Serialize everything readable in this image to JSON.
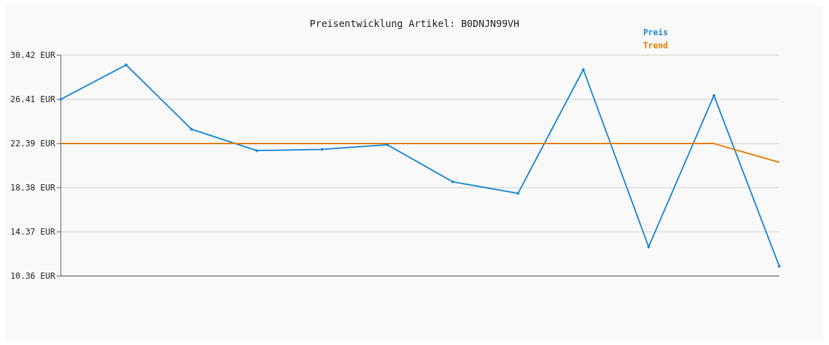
{
  "chart_data": {
    "type": "line",
    "title": "Preisentwicklung Artikel: B0DNJN99VH",
    "categories": [
      null,
      null,
      null,
      null,
      null,
      null,
      null,
      null,
      null,
      null,
      null,
      null
    ],
    "series": [
      {
        "name": "Preis",
        "color": "#1f88d2",
        "values": [
          26.41,
          29.54,
          23.7,
          21.75,
          21.87,
          22.28,
          18.92,
          17.86,
          29.12,
          13.01,
          26.76,
          11.24
        ]
      },
      {
        "name": "Trend",
        "color": "#e07c00",
        "values": [
          22.39,
          22.39,
          22.39,
          22.39,
          22.39,
          22.39,
          22.39,
          22.39,
          22.39,
          22.39,
          22.39,
          20.69
        ],
        "marker": "none"
      }
    ],
    "ylim": [
      10.36,
      30.42
    ],
    "yticks": [
      {
        "value": 10.36,
        "label": "10.36 EUR"
      },
      {
        "value": 14.37,
        "label": "14.37 EUR"
      },
      {
        "value": 18.38,
        "label": "18.38 EUR"
      },
      {
        "value": 22.39,
        "label": "22.39 EUR"
      },
      {
        "value": 26.41,
        "label": "26.41 EUR"
      },
      {
        "value": 30.42,
        "label": "30.42 EUR"
      }
    ],
    "grid": "y",
    "legend": "top right",
    "marker": "diamond",
    "line_style": "solid",
    "tick_labels": "y"
  }
}
